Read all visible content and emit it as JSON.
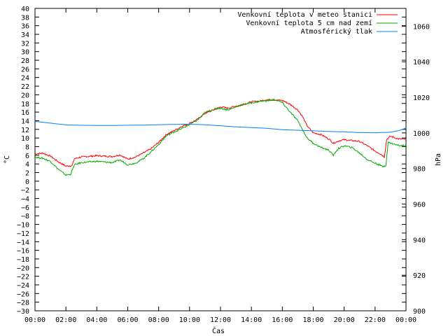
{
  "chart_data": {
    "type": "line",
    "xlabel": "Čas",
    "ylabel": "°C",
    "y2label": "hPa",
    "x_ticks": [
      "00:00",
      "02:00",
      "04:00",
      "06:00",
      "08:00",
      "10:00",
      "12:00",
      "14:00",
      "16:00",
      "18:00",
      "20:00",
      "22:00",
      "00:00"
    ],
    "xlim": [
      0,
      24
    ],
    "ylim": [
      -30,
      40
    ],
    "y_tick_step": 2,
    "y2lim": [
      900,
      1070
    ],
    "y2_ticks": [
      900,
      920,
      940,
      960,
      980,
      1000,
      1020,
      1040,
      1060
    ],
    "grid": false,
    "legend_position": "top-right",
    "series": [
      {
        "name": "Venkovní teplota v meteo stanici",
        "color": "#ff0000",
        "axis": "left",
        "points": [
          [
            0,
            6.3
          ],
          [
            0.5,
            6.5
          ],
          [
            1,
            5.8
          ],
          [
            1.5,
            4.5
          ],
          [
            2,
            3.5
          ],
          [
            2.4,
            3.6
          ],
          [
            2.55,
            5.2
          ],
          [
            3,
            5.6
          ],
          [
            4,
            5.9
          ],
          [
            5,
            5.7
          ],
          [
            5.5,
            6.1
          ],
          [
            6,
            5.1
          ],
          [
            6.5,
            5.6
          ],
          [
            7,
            6.5
          ],
          [
            7.5,
            7.5
          ],
          [
            8,
            9.0
          ],
          [
            8.5,
            10.8
          ],
          [
            9,
            11.7
          ],
          [
            9.5,
            12.7
          ],
          [
            10,
            13.4
          ],
          [
            10.5,
            14.3
          ],
          [
            11,
            15.7
          ],
          [
            11.5,
            16.4
          ],
          [
            12,
            17.2
          ],
          [
            12.5,
            16.9
          ],
          [
            13,
            17.4
          ],
          [
            13.5,
            17.8
          ],
          [
            14,
            18.4
          ],
          [
            14.5,
            18.5
          ],
          [
            15,
            18.9
          ],
          [
            15.5,
            18.8
          ],
          [
            16,
            18.7
          ],
          [
            16.5,
            17.8
          ],
          [
            17,
            16.5
          ],
          [
            17.3,
            15.0
          ],
          [
            17.6,
            12.8
          ],
          [
            18,
            11.2
          ],
          [
            18.5,
            10.8
          ],
          [
            19,
            9.8
          ],
          [
            19.3,
            8.8
          ],
          [
            19.7,
            9.4
          ],
          [
            20,
            9.6
          ],
          [
            21,
            9.2
          ],
          [
            21.5,
            8.2
          ],
          [
            22,
            7.0
          ],
          [
            22.4,
            6.2
          ],
          [
            22.6,
            5.6
          ],
          [
            22.75,
            9.7
          ],
          [
            23,
            10.4
          ],
          [
            23.5,
            9.8
          ],
          [
            24,
            9.7
          ]
        ]
      },
      {
        "name": "Venkovní teplota 5 cm nad zemí",
        "color": "#00aa00",
        "axis": "left",
        "points": [
          [
            0,
            5.6
          ],
          [
            0.5,
            5.3
          ],
          [
            1,
            4.6
          ],
          [
            1.5,
            2.8
          ],
          [
            2,
            1.4
          ],
          [
            2.3,
            1.6
          ],
          [
            2.55,
            3.8
          ],
          [
            3,
            4.3
          ],
          [
            4,
            4.6
          ],
          [
            5,
            4.3
          ],
          [
            5.5,
            4.9
          ],
          [
            6,
            3.8
          ],
          [
            6.5,
            4.2
          ],
          [
            7,
            5.2
          ],
          [
            7.5,
            6.8
          ],
          [
            8,
            8.5
          ],
          [
            8.5,
            10.5
          ],
          [
            9,
            11.4
          ],
          [
            9.5,
            12.2
          ],
          [
            10,
            13.1
          ],
          [
            10.5,
            14.1
          ],
          [
            11,
            15.9
          ],
          [
            11.5,
            16.6
          ],
          [
            12,
            16.9
          ],
          [
            12.5,
            16.5
          ],
          [
            13,
            17.2
          ],
          [
            13.5,
            17.8
          ],
          [
            14,
            18.1
          ],
          [
            14.5,
            18.5
          ],
          [
            15,
            18.6
          ],
          [
            15.5,
            18.9
          ],
          [
            16,
            18.2
          ],
          [
            16.5,
            16.0
          ],
          [
            17,
            14.0
          ],
          [
            17.3,
            12.0
          ],
          [
            17.6,
            10.0
          ],
          [
            18,
            8.8
          ],
          [
            18.5,
            7.8
          ],
          [
            19,
            7.2
          ],
          [
            19.3,
            6.0
          ],
          [
            19.6,
            7.5
          ],
          [
            20,
            8.2
          ],
          [
            20.5,
            7.8
          ],
          [
            21,
            6.5
          ],
          [
            21.5,
            5.0
          ],
          [
            22,
            4.2
          ],
          [
            22.5,
            3.4
          ],
          [
            22.7,
            3.7
          ],
          [
            22.85,
            9.0
          ],
          [
            23,
            8.8
          ],
          [
            23.5,
            8.3
          ],
          [
            24,
            8.2
          ]
        ]
      },
      {
        "name": "Atmosférický tlak",
        "color": "#0080ff",
        "axis": "right",
        "points": [
          [
            0,
            1006.5
          ],
          [
            1,
            1005.5
          ],
          [
            2,
            1004.5
          ],
          [
            3,
            1004.3
          ],
          [
            4,
            1004.2
          ],
          [
            5,
            1004.2
          ],
          [
            6,
            1004.3
          ],
          [
            7,
            1004.4
          ],
          [
            8,
            1004.6
          ],
          [
            9,
            1004.8
          ],
          [
            10,
            1004.9
          ],
          [
            11,
            1004.6
          ],
          [
            12,
            1004.0
          ],
          [
            13,
            1003.4
          ],
          [
            14,
            1003.0
          ],
          [
            15,
            1002.6
          ],
          [
            16,
            1001.8
          ],
          [
            17,
            1001.5
          ],
          [
            18,
            1001.2
          ],
          [
            19,
            1000.8
          ],
          [
            20,
            1000.6
          ],
          [
            21,
            1000.2
          ],
          [
            22,
            1000.1
          ],
          [
            23,
            1000.4
          ],
          [
            23.6,
            1001.5
          ],
          [
            24,
            1002.8
          ]
        ]
      }
    ]
  }
}
